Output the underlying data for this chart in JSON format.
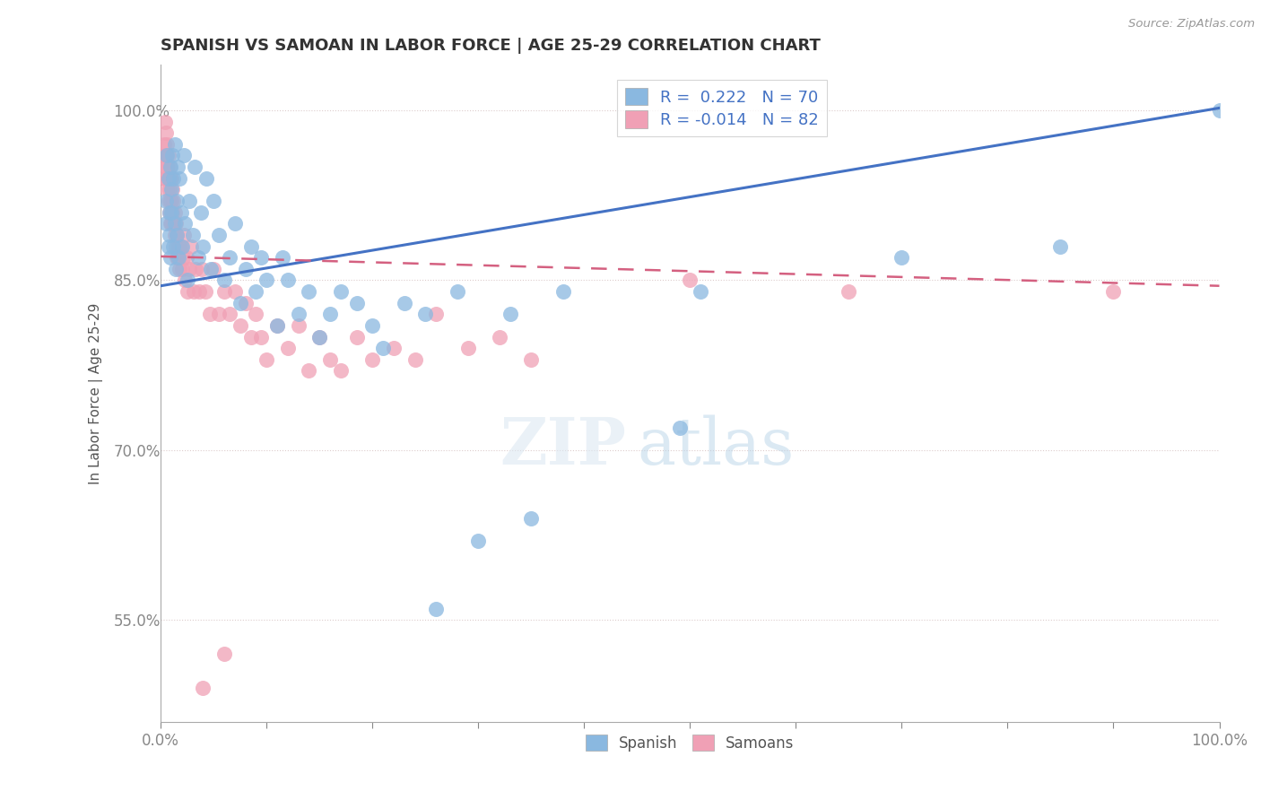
{
  "title": "SPANISH VS SAMOAN IN LABOR FORCE | AGE 25-29 CORRELATION CHART",
  "ylabel": "In Labor Force | Age 25-29",
  "source": "Source: ZipAtlas.com",
  "watermark_zip": "ZIP",
  "watermark_atlas": "atlas",
  "xlim": [
    0.0,
    1.0
  ],
  "ylim": [
    0.46,
    1.04
  ],
  "yticks": [
    0.55,
    0.7,
    0.85,
    1.0
  ],
  "ytick_labels": [
    "55.0%",
    "70.0%",
    "85.0%",
    "100.0%"
  ],
  "r_spanish": 0.222,
  "n_spanish": 70,
  "r_samoan": -0.014,
  "n_samoan": 82,
  "spanish_color": "#8ab8e0",
  "samoan_color": "#f0a0b5",
  "trendline_spanish_color": "#4472c4",
  "trendline_samoan_color": "#d46080",
  "trendline_spanish_start_y": 0.845,
  "trendline_spanish_end_y": 1.002,
  "trendline_samoan_start_y": 0.871,
  "trendline_samoan_end_y": 0.845,
  "background_color": "#ffffff",
  "xtick_positions": [
    0.0,
    0.1,
    0.2,
    0.3,
    0.4,
    0.5,
    0.6,
    0.7,
    0.8,
    0.9,
    1.0
  ],
  "spanish_points_x": [
    0.005,
    0.005,
    0.006,
    0.007,
    0.007,
    0.008,
    0.008,
    0.009,
    0.009,
    0.01,
    0.01,
    0.011,
    0.012,
    0.012,
    0.013,
    0.013,
    0.014,
    0.015,
    0.015,
    0.016,
    0.017,
    0.018,
    0.019,
    0.02,
    0.022,
    0.023,
    0.025,
    0.027,
    0.03,
    0.032,
    0.035,
    0.038,
    0.04,
    0.043,
    0.047,
    0.05,
    0.055,
    0.06,
    0.065,
    0.07,
    0.075,
    0.08,
    0.085,
    0.09,
    0.095,
    0.1,
    0.11,
    0.115,
    0.12,
    0.13,
    0.14,
    0.15,
    0.16,
    0.17,
    0.185,
    0.2,
    0.21,
    0.23,
    0.25,
    0.26,
    0.28,
    0.3,
    0.33,
    0.35,
    0.38,
    0.49,
    0.51,
    0.7,
    0.85,
    1.0
  ],
  "spanish_points_y": [
    0.92,
    0.9,
    0.96,
    0.88,
    0.94,
    0.91,
    0.89,
    0.95,
    0.87,
    0.93,
    0.91,
    0.96,
    0.88,
    0.94,
    0.9,
    0.97,
    0.86,
    0.92,
    0.89,
    0.95,
    0.87,
    0.94,
    0.91,
    0.88,
    0.96,
    0.9,
    0.85,
    0.92,
    0.89,
    0.95,
    0.87,
    0.91,
    0.88,
    0.94,
    0.86,
    0.92,
    0.89,
    0.85,
    0.87,
    0.9,
    0.83,
    0.86,
    0.88,
    0.84,
    0.87,
    0.85,
    0.81,
    0.87,
    0.85,
    0.82,
    0.84,
    0.8,
    0.82,
    0.84,
    0.83,
    0.81,
    0.79,
    0.83,
    0.82,
    0.56,
    0.84,
    0.62,
    0.82,
    0.64,
    0.84,
    0.72,
    0.84,
    0.87,
    0.88,
    1.0
  ],
  "samoan_points_x": [
    0.003,
    0.003,
    0.004,
    0.004,
    0.004,
    0.005,
    0.005,
    0.005,
    0.006,
    0.006,
    0.006,
    0.007,
    0.007,
    0.007,
    0.008,
    0.008,
    0.008,
    0.009,
    0.009,
    0.009,
    0.01,
    0.01,
    0.01,
    0.011,
    0.011,
    0.012,
    0.012,
    0.013,
    0.013,
    0.014,
    0.014,
    0.015,
    0.015,
    0.016,
    0.017,
    0.018,
    0.019,
    0.02,
    0.021,
    0.022,
    0.023,
    0.024,
    0.025,
    0.027,
    0.029,
    0.031,
    0.033,
    0.036,
    0.039,
    0.042,
    0.046,
    0.05,
    0.055,
    0.06,
    0.065,
    0.07,
    0.075,
    0.08,
    0.085,
    0.09,
    0.095,
    0.1,
    0.11,
    0.12,
    0.13,
    0.14,
    0.15,
    0.16,
    0.17,
    0.185,
    0.2,
    0.22,
    0.24,
    0.26,
    0.29,
    0.32,
    0.35,
    0.5,
    0.65,
    0.9,
    0.04,
    0.06
  ],
  "samoan_points_y": [
    0.97,
    0.95,
    0.99,
    0.96,
    0.94,
    0.98,
    0.96,
    0.94,
    0.97,
    0.95,
    0.93,
    0.96,
    0.94,
    0.92,
    0.95,
    0.93,
    0.91,
    0.94,
    0.92,
    0.9,
    0.94,
    0.92,
    0.9,
    0.93,
    0.91,
    0.92,
    0.9,
    0.91,
    0.89,
    0.9,
    0.88,
    0.89,
    0.87,
    0.87,
    0.88,
    0.86,
    0.88,
    0.86,
    0.87,
    0.89,
    0.85,
    0.87,
    0.84,
    0.86,
    0.88,
    0.84,
    0.86,
    0.84,
    0.86,
    0.84,
    0.82,
    0.86,
    0.82,
    0.84,
    0.82,
    0.84,
    0.81,
    0.83,
    0.8,
    0.82,
    0.8,
    0.78,
    0.81,
    0.79,
    0.81,
    0.77,
    0.8,
    0.78,
    0.77,
    0.8,
    0.78,
    0.79,
    0.78,
    0.82,
    0.79,
    0.8,
    0.78,
    0.85,
    0.84,
    0.84,
    0.49,
    0.52
  ]
}
